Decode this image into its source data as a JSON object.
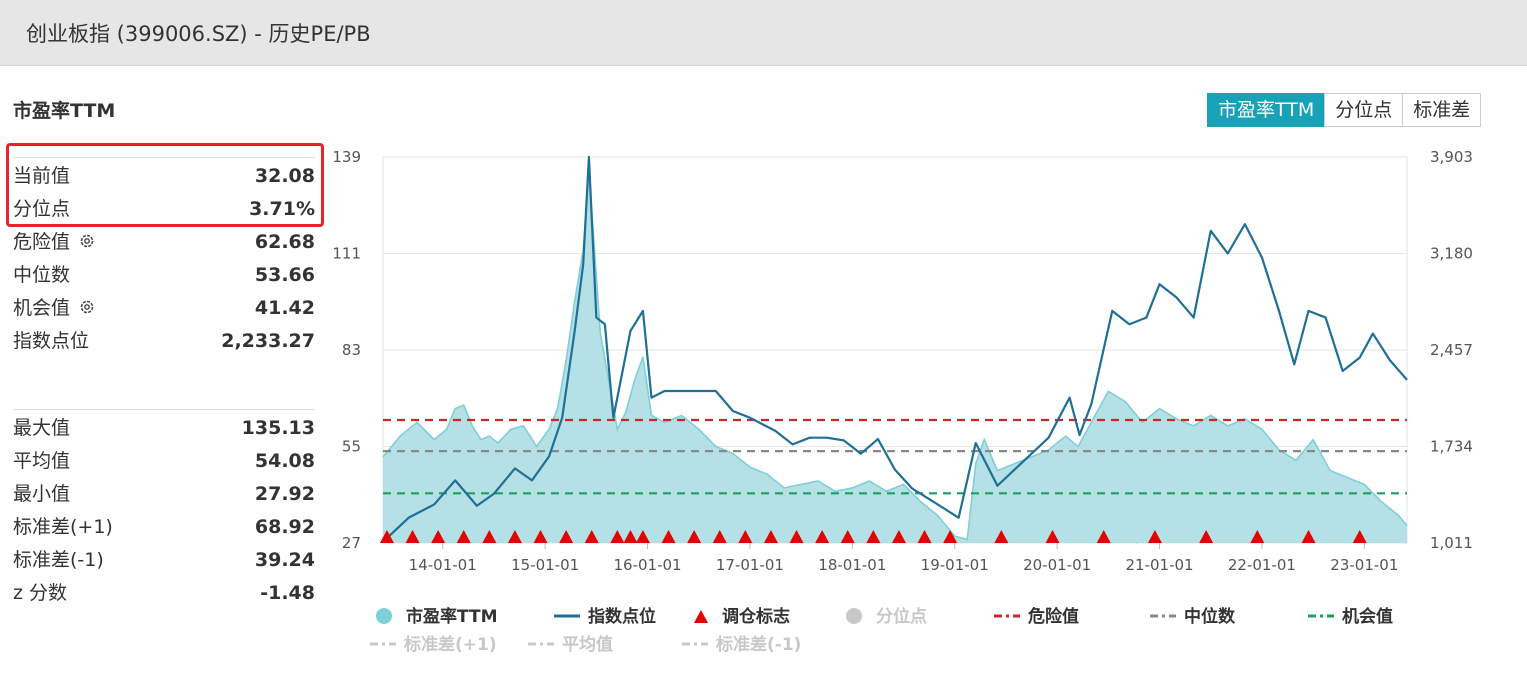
{
  "header": {
    "title": "创业板指 (399006.SZ) - 历史PE/PB"
  },
  "panel": {
    "title": "市盈率TTM"
  },
  "tabs": [
    {
      "label": "市盈率TTM",
      "active": true
    },
    {
      "label": "分位点",
      "active": false
    },
    {
      "label": "标准差",
      "active": false
    }
  ],
  "stats_top": [
    {
      "label": "当前值",
      "value": "32.08"
    },
    {
      "label": "分位点",
      "value": "3.71%"
    },
    {
      "label": "危险值",
      "value": "62.68",
      "gear": true
    },
    {
      "label": "中位数",
      "value": "53.66"
    },
    {
      "label": "机会值",
      "value": "41.42",
      "gear": true
    },
    {
      "label": "指数点位",
      "value": "2,233.27"
    }
  ],
  "stats_bottom": [
    {
      "label": "最大值",
      "value": "135.13"
    },
    {
      "label": "平均值",
      "value": "54.08"
    },
    {
      "label": "最小值",
      "value": "27.92"
    },
    {
      "label": "标准差(+1)",
      "value": "68.92"
    },
    {
      "label": "标准差(-1)",
      "value": "39.24"
    },
    {
      "label": "z 分数",
      "value": "-1.48"
    }
  ],
  "legend": [
    {
      "label": "市盈率TTM",
      "icon": "circle",
      "color": "#7ecfd8",
      "disabled": false
    },
    {
      "label": "指数点位",
      "icon": "line",
      "color": "#1f6f96",
      "disabled": false
    },
    {
      "label": "调仓标志",
      "icon": "triangle",
      "color": "#e60000",
      "disabled": false
    },
    {
      "label": "分位点",
      "icon": "circle",
      "color": "#c8c8c8",
      "disabled": true
    },
    {
      "label": "危险值",
      "icon": "dash",
      "color": "#c62828",
      "disabled": false
    },
    {
      "label": "中位数",
      "icon": "dash",
      "color": "#888888",
      "disabled": false
    },
    {
      "label": "机会值",
      "icon": "dash",
      "color": "#1e9e5e",
      "disabled": false
    },
    {
      "label": "标准差(+1)",
      "icon": "dash",
      "color": "#c8c8c8",
      "disabled": true
    },
    {
      "label": "平均值",
      "icon": "dash",
      "color": "#c8c8c8",
      "disabled": true
    },
    {
      "label": "标准差(-1)",
      "icon": "dash",
      "color": "#c8c8c8",
      "disabled": true
    }
  ],
  "colors": {
    "pe_fill": "#a8dbe2",
    "pe_line": "#7ecfd8",
    "index_line": "#1f6f96",
    "danger": "#c62828",
    "median": "#888888",
    "opportunity": "#1e9e5e",
    "marker": "#e60000",
    "accent": "#17a2b8",
    "highlight": "#e8232a"
  },
  "chart_data": {
    "type": "area",
    "x_start": "13-06-01",
    "x_end": "23-06-01",
    "x_ticks": [
      "14-01-01",
      "15-01-01",
      "16-01-01",
      "17-01-01",
      "18-01-01",
      "19-01-01",
      "20-01-01",
      "21-01-01",
      "22-01-01",
      "23-01-01"
    ],
    "y_left": {
      "min": 27,
      "max": 139,
      "ticks": [
        "139",
        "111",
        "83",
        "55",
        "27"
      ]
    },
    "y_right": {
      "min": 1011,
      "max": 3903,
      "ticks": [
        "3,903",
        "3,180",
        "2,457",
        "1,734",
        "1,011"
      ]
    },
    "reference_lines": {
      "danger": 62.68,
      "median": 53.66,
      "opportunity": 41.42
    },
    "pe_ttm": [
      [
        "13-06-01",
        52
      ],
      [
        "13-08-01",
        58
      ],
      [
        "13-10-01",
        62
      ],
      [
        "13-12-01",
        57
      ],
      [
        "14-01-15",
        60
      ],
      [
        "14-02-15",
        66
      ],
      [
        "14-03-15",
        67
      ],
      [
        "14-04-15",
        61
      ],
      [
        "14-05-15",
        57
      ],
      [
        "14-06-15",
        58
      ],
      [
        "14-07-15",
        56
      ],
      [
        "14-09-01",
        60
      ],
      [
        "14-10-15",
        61
      ],
      [
        "14-12-01",
        55
      ],
      [
        "15-01-15",
        60
      ],
      [
        "15-02-15",
        66
      ],
      [
        "15-03-15",
        80
      ],
      [
        "15-04-15",
        97
      ],
      [
        "15-05-15",
        112
      ],
      [
        "15-06-05",
        135
      ],
      [
        "15-06-25",
        112
      ],
      [
        "15-07-15",
        88
      ],
      [
        "15-08-15",
        74
      ],
      [
        "15-09-15",
        60
      ],
      [
        "15-10-15",
        65
      ],
      [
        "15-11-15",
        74
      ],
      [
        "15-12-15",
        81
      ],
      [
        "16-01-15",
        64
      ],
      [
        "16-03-01",
        62
      ],
      [
        "16-05-01",
        64
      ],
      [
        "16-07-01",
        60
      ],
      [
        "16-09-01",
        55
      ],
      [
        "16-11-01",
        53
      ],
      [
        "17-01-01",
        49
      ],
      [
        "17-03-01",
        47
      ],
      [
        "17-05-01",
        43
      ],
      [
        "17-07-01",
        44
      ],
      [
        "17-09-01",
        45
      ],
      [
        "17-11-01",
        42
      ],
      [
        "18-01-01",
        43
      ],
      [
        "18-03-01",
        45
      ],
      [
        "18-05-01",
        42
      ],
      [
        "18-07-01",
        44
      ],
      [
        "18-09-01",
        39
      ],
      [
        "18-11-01",
        35
      ],
      [
        "19-01-01",
        29
      ],
      [
        "19-02-15",
        28
      ],
      [
        "19-03-15",
        50
      ],
      [
        "19-04-15",
        57
      ],
      [
        "19-06-01",
        48
      ],
      [
        "19-08-01",
        50
      ],
      [
        "19-10-01",
        52
      ],
      [
        "19-12-01",
        54
      ],
      [
        "20-02-01",
        58
      ],
      [
        "20-03-15",
        55
      ],
      [
        "20-05-01",
        62
      ],
      [
        "20-07-01",
        71
      ],
      [
        "20-09-01",
        68
      ],
      [
        "20-11-01",
        62
      ],
      [
        "21-01-01",
        66
      ],
      [
        "21-03-01",
        63
      ],
      [
        "21-05-01",
        61
      ],
      [
        "21-07-01",
        64
      ],
      [
        "21-09-01",
        61
      ],
      [
        "21-11-01",
        63
      ],
      [
        "22-01-01",
        60
      ],
      [
        "22-03-01",
        54
      ],
      [
        "22-05-01",
        51
      ],
      [
        "22-07-01",
        57
      ],
      [
        "22-09-01",
        48
      ],
      [
        "22-11-01",
        46
      ],
      [
        "23-01-01",
        44
      ],
      [
        "23-03-01",
        39
      ],
      [
        "23-05-01",
        35
      ],
      [
        "23-06-01",
        32.08
      ]
    ],
    "index_points": [
      [
        "13-06-01",
        1020
      ],
      [
        "13-09-01",
        1200
      ],
      [
        "13-12-01",
        1300
      ],
      [
        "14-02-15",
        1480
      ],
      [
        "14-05-01",
        1290
      ],
      [
        "14-07-01",
        1380
      ],
      [
        "14-09-15",
        1570
      ],
      [
        "14-11-15",
        1480
      ],
      [
        "15-01-15",
        1660
      ],
      [
        "15-03-01",
        1950
      ],
      [
        "15-04-15",
        2600
      ],
      [
        "15-05-15",
        3100
      ],
      [
        "15-06-05",
        3903
      ],
      [
        "15-07-01",
        2700
      ],
      [
        "15-08-01",
        2650
      ],
      [
        "15-09-01",
        1950
      ],
      [
        "15-11-01",
        2600
      ],
      [
        "15-12-15",
        2750
      ],
      [
        "16-01-15",
        2100
      ],
      [
        "16-03-01",
        2150
      ],
      [
        "16-06-01",
        2150
      ],
      [
        "16-09-01",
        2150
      ],
      [
        "16-11-01",
        2000
      ],
      [
        "17-01-01",
        1950
      ],
      [
        "17-04-01",
        1850
      ],
      [
        "17-06-01",
        1750
      ],
      [
        "17-08-01",
        1800
      ],
      [
        "17-10-01",
        1800
      ],
      [
        "17-12-01",
        1780
      ],
      [
        "18-02-01",
        1680
      ],
      [
        "18-04-01",
        1790
      ],
      [
        "18-06-01",
        1560
      ],
      [
        "18-08-01",
        1420
      ],
      [
        "18-10-01",
        1340
      ],
      [
        "18-12-01",
        1260
      ],
      [
        "19-01-15",
        1200
      ],
      [
        "19-03-15",
        1760
      ],
      [
        "19-06-01",
        1440
      ],
      [
        "19-08-01",
        1560
      ],
      [
        "19-10-01",
        1680
      ],
      [
        "19-12-01",
        1800
      ],
      [
        "20-02-15",
        2100
      ],
      [
        "20-03-20",
        1820
      ],
      [
        "20-05-01",
        2050
      ],
      [
        "20-07-15",
        2750
      ],
      [
        "20-09-15",
        2650
      ],
      [
        "20-11-15",
        2700
      ],
      [
        "21-01-01",
        2950
      ],
      [
        "21-03-01",
        2850
      ],
      [
        "21-05-01",
        2700
      ],
      [
        "21-07-01",
        3350
      ],
      [
        "21-09-01",
        3180
      ],
      [
        "21-11-01",
        3400
      ],
      [
        "22-01-01",
        3150
      ],
      [
        "22-03-01",
        2750
      ],
      [
        "22-04-25",
        2350
      ],
      [
        "22-06-15",
        2750
      ],
      [
        "22-08-15",
        2700
      ],
      [
        "22-10-15",
        2300
      ],
      [
        "22-12-15",
        2400
      ],
      [
        "23-02-01",
        2580
      ],
      [
        "23-04-01",
        2380
      ],
      [
        "23-06-01",
        2233.27
      ]
    ],
    "rebalance_markers": [
      "13-06-15",
      "13-09-15",
      "13-12-15",
      "14-03-15",
      "14-06-15",
      "14-09-15",
      "14-12-15",
      "15-03-15",
      "15-06-15",
      "15-09-15",
      "15-11-01",
      "15-12-15",
      "16-03-15",
      "16-06-15",
      "16-09-15",
      "16-12-15",
      "17-03-15",
      "17-06-15",
      "17-09-15",
      "17-12-15",
      "18-03-15",
      "18-06-15",
      "18-09-15",
      "18-12-15",
      "19-06-15",
      "19-12-15",
      "20-06-15",
      "20-12-15",
      "21-06-15",
      "21-12-15",
      "22-06-15",
      "22-12-15"
    ]
  }
}
